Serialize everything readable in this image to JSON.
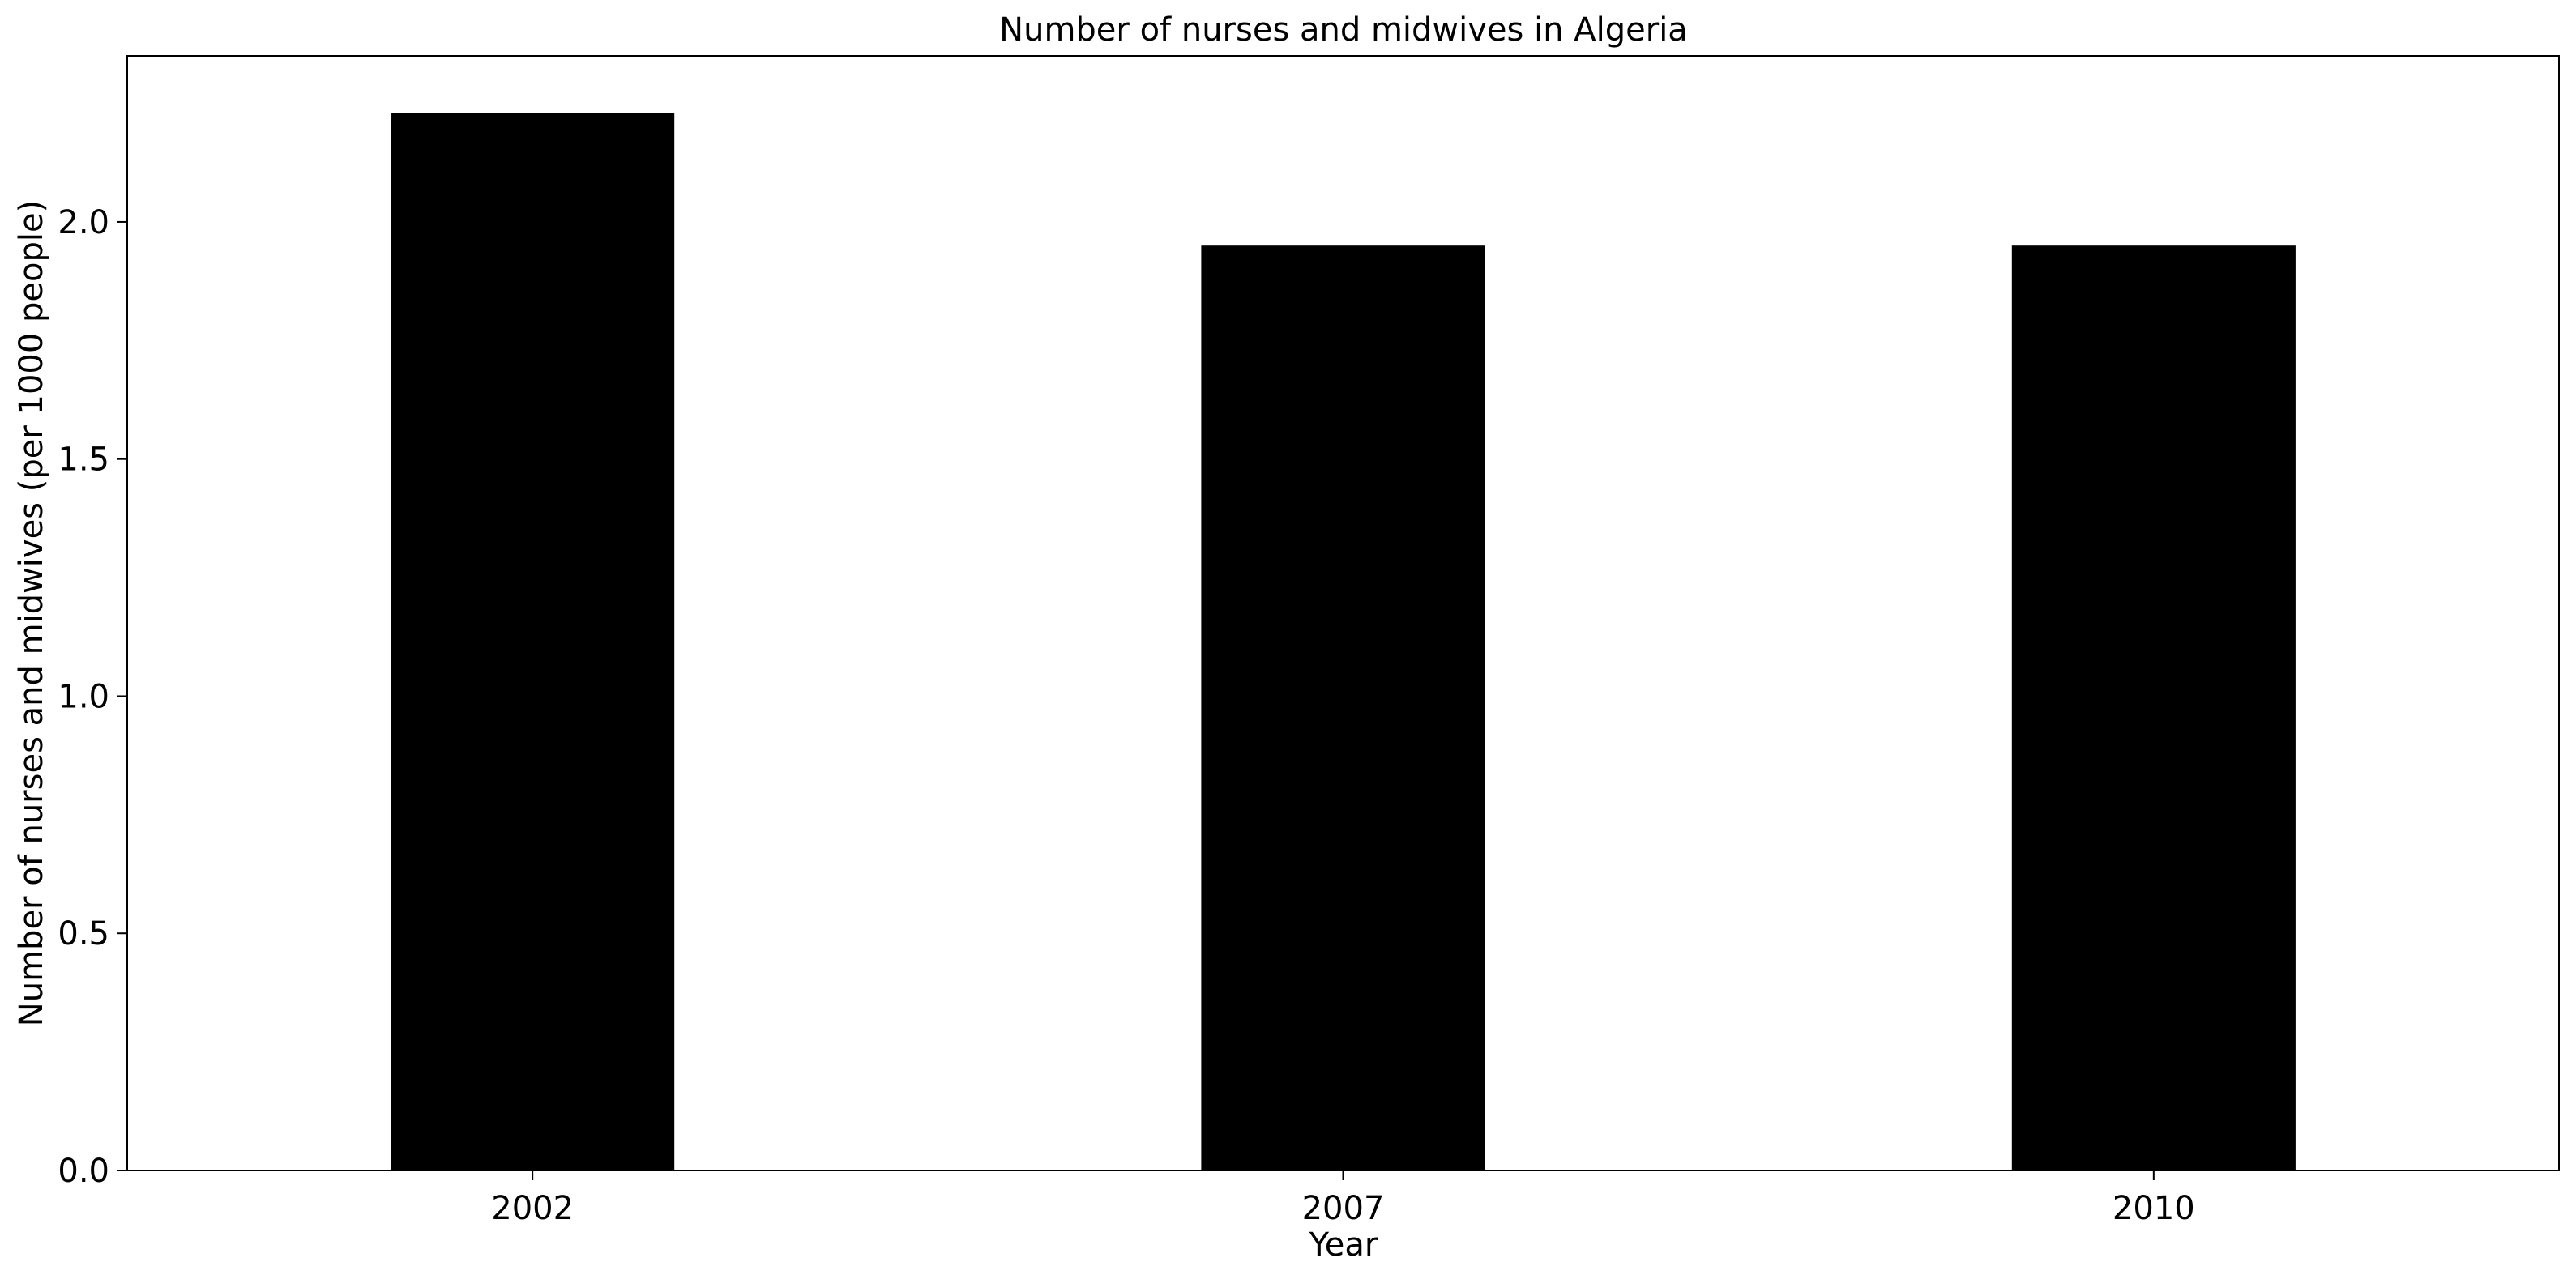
{
  "chart_data": {
    "type": "bar",
    "title": "Number of nurses and midwives in Algeria",
    "xlabel": "Year",
    "ylabel": "Number of nurses and midwives (per 1000 people)",
    "categories": [
      "2002",
      "2007",
      "2010"
    ],
    "values": [
      2.23,
      1.95,
      1.95
    ],
    "ylim": [
      0,
      2.35
    ],
    "yticks": [
      0.0,
      0.5,
      1.0,
      1.5,
      2.0
    ],
    "ytick_labels": [
      "0.0",
      "0.5",
      "1.0",
      "1.5",
      "2.0"
    ],
    "bar_color": "#000000",
    "grid": false,
    "legend": "none"
  }
}
